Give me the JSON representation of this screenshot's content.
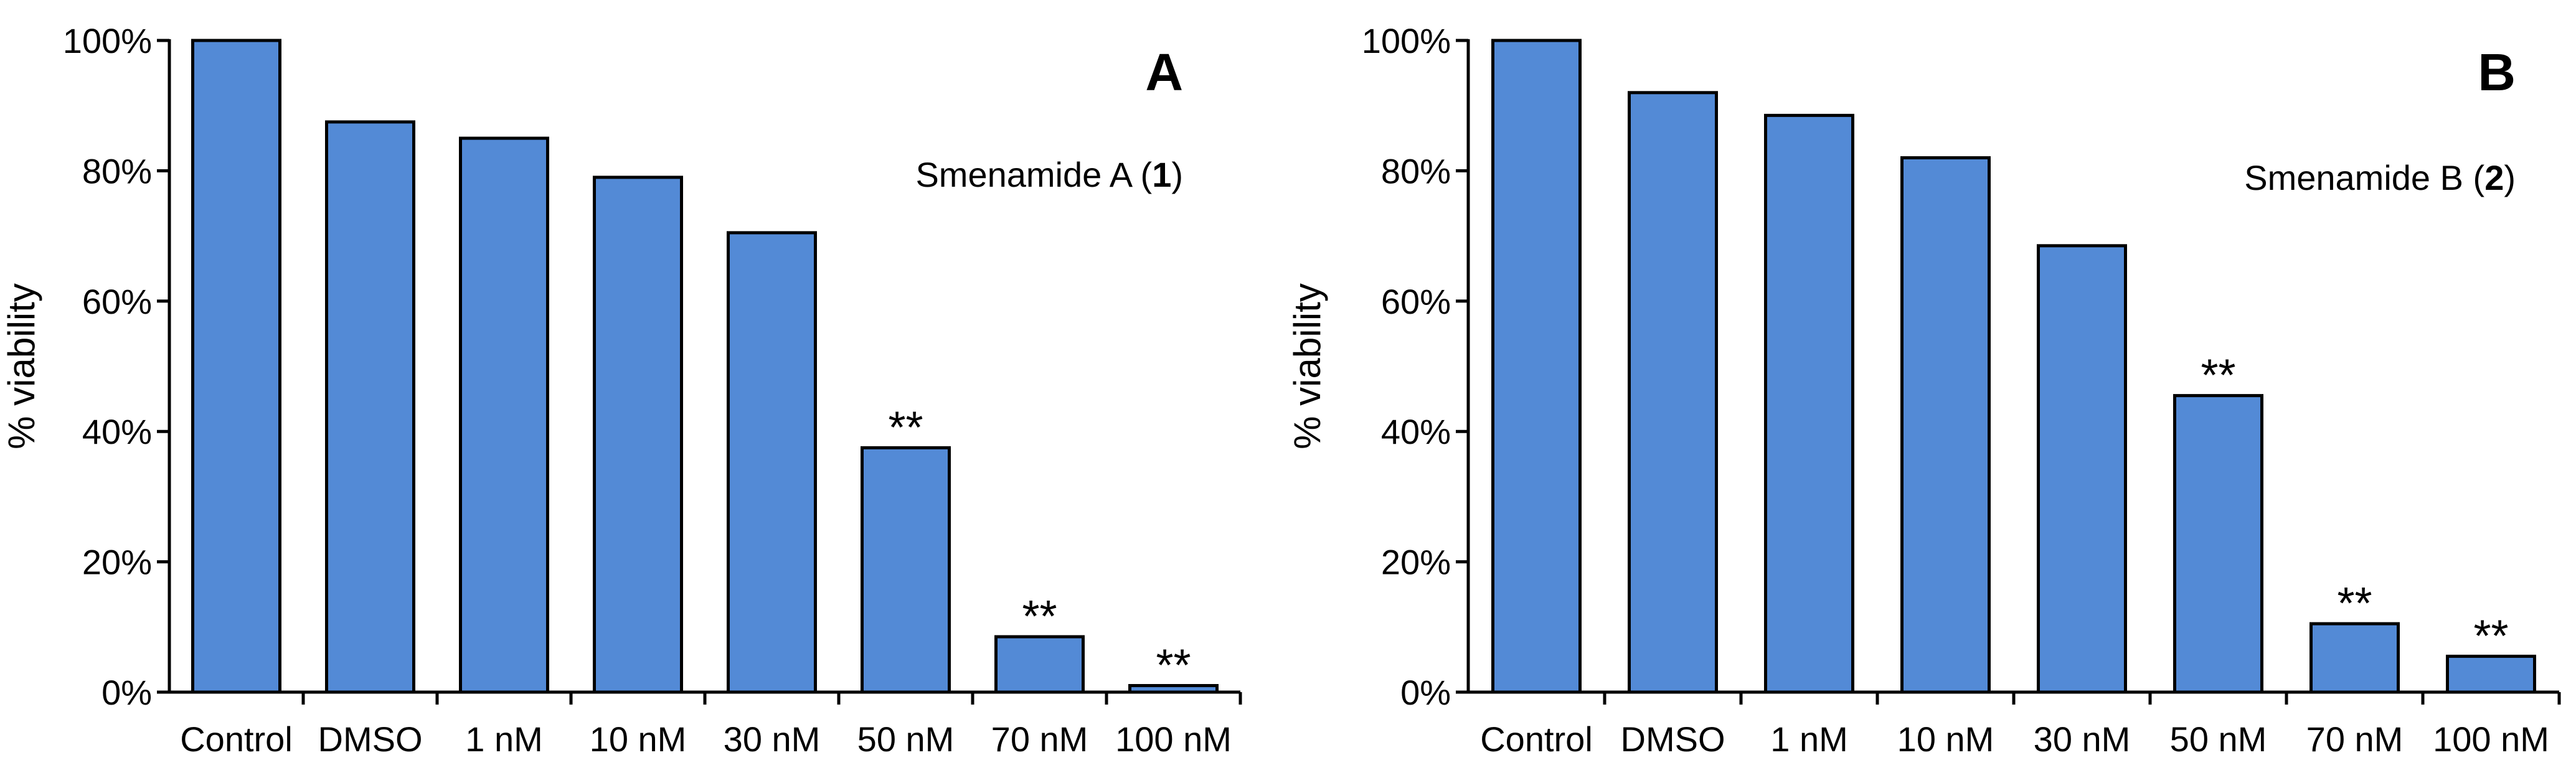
{
  "chart_data": [
    {
      "type": "bar",
      "panel_label": "A",
      "title_prefix": "Smenamide A (",
      "title_bold": "1",
      "title_suffix": ")",
      "ylabel": "% viability",
      "xlabel": "",
      "ylim": [
        0,
        100
      ],
      "yticks": [
        "0%",
        "20%",
        "40%",
        "60%",
        "80%",
        "100%"
      ],
      "categories": [
        "Control",
        "DMSO",
        "1 nM",
        "10 nM",
        "30 nM",
        "50 nM",
        "70 nM",
        "100 nM"
      ],
      "values": [
        100,
        87.5,
        85,
        79,
        70.5,
        37.5,
        8.5,
        1
      ],
      "annotations": [
        "",
        "",
        "",
        "",
        "",
        "**",
        "**",
        "**"
      ],
      "bar_color": "#538ad6",
      "grid": false
    },
    {
      "type": "bar",
      "panel_label": "B",
      "title_prefix": "Smenamide B (",
      "title_bold": "2",
      "title_suffix": ")",
      "ylabel": "% viability",
      "xlabel": "",
      "ylim": [
        0,
        100
      ],
      "yticks": [
        "0%",
        "20%",
        "40%",
        "60%",
        "80%",
        "100%"
      ],
      "categories": [
        "Control",
        "DMSO",
        "1 nM",
        "10 nM",
        "30 nM",
        "50 nM",
        "70 nM",
        "100 nM"
      ],
      "values": [
        100,
        92,
        88.5,
        82,
        68.5,
        45.5,
        10.5,
        5.5
      ],
      "annotations": [
        "",
        "",
        "",
        "",
        "",
        "**",
        "**",
        "**"
      ],
      "bar_color": "#538ad6",
      "grid": false
    }
  ]
}
